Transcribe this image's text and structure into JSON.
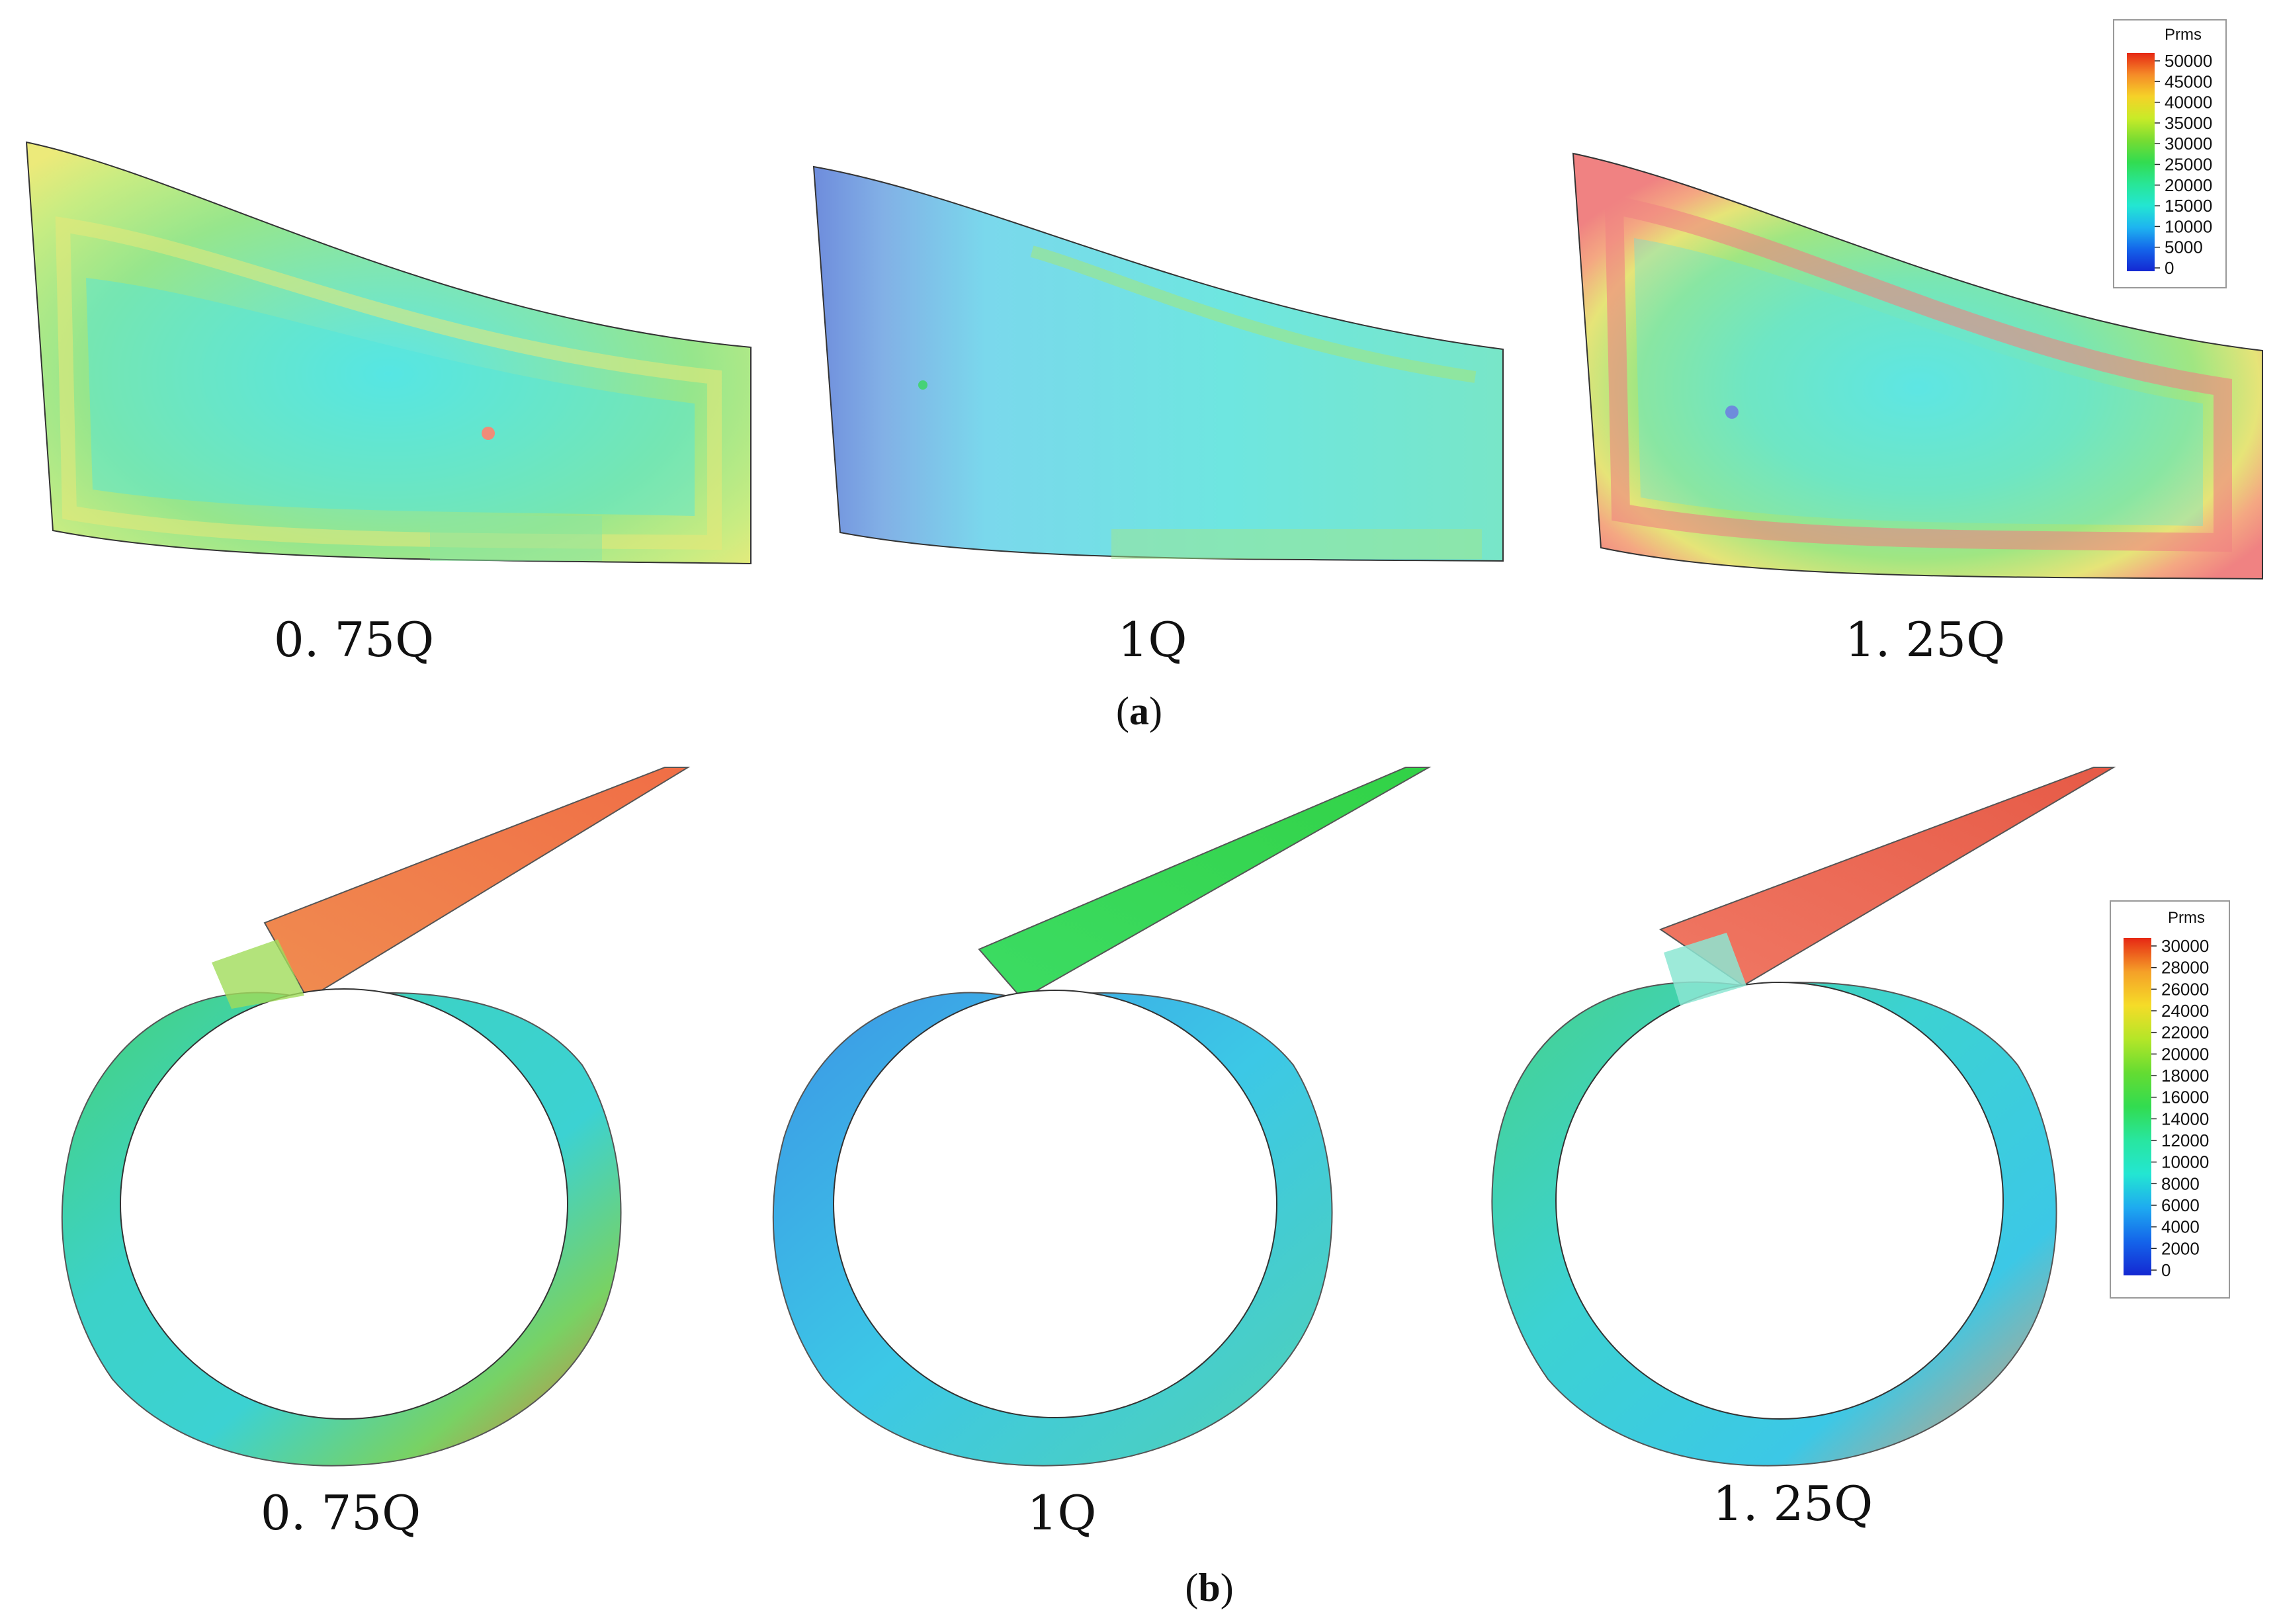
{
  "panel_a": {
    "caption": "(a)",
    "caption_letter": "a",
    "labels": [
      "0. 75Q",
      "1Q",
      "1. 25Q"
    ],
    "legend": {
      "title": "Prms",
      "ticks": [
        "50000",
        "45000",
        "40000",
        "35000",
        "30000",
        "25000",
        "20000",
        "15000",
        "10000",
        "5000",
        "0"
      ]
    }
  },
  "panel_b": {
    "caption": "(b)",
    "caption_letter": "b",
    "labels": [
      "0. 75Q",
      "1Q",
      "1. 25Q"
    ],
    "legend": {
      "title": "Prms",
      "ticks": [
        "30000",
        "28000",
        "26000",
        "24000",
        "22000",
        "20000",
        "18000",
        "16000",
        "14000",
        "12000",
        "10000",
        "8000",
        "6000",
        "4000",
        "2000",
        "0"
      ]
    }
  },
  "colors": {
    "legend_scale": [
      "#1432d8",
      "#1464ea",
      "#1e96f0",
      "#1ec8f0",
      "#23e6d2",
      "#28e6a0",
      "#32dc5a",
      "#64dc37",
      "#a0e632",
      "#dcf028",
      "#f5dc28",
      "#f5b428",
      "#f58c28",
      "#f55a28",
      "#e62814"
    ]
  }
}
